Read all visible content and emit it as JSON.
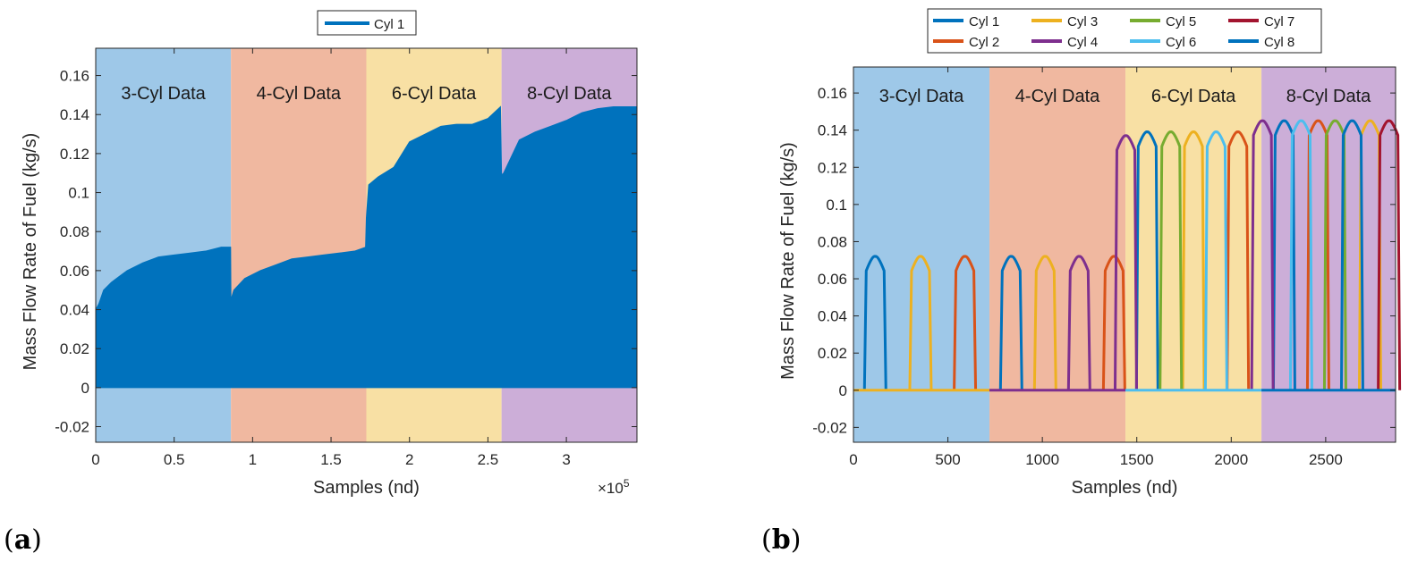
{
  "panels": [
    {
      "label_open": "(",
      "label_letter": "a",
      "label_close": ")"
    },
    {
      "label_open": "(",
      "label_letter": "b",
      "label_close": ")"
    }
  ],
  "chart_data": [
    {
      "type": "area",
      "xlabel": "Samples (nd)",
      "ylabel": "Mass Flow Rate of Fuel (kg/s)",
      "x_exponent_label": "×10",
      "x_exponent_power": "5",
      "xlim": [
        0,
        3.45
      ],
      "ylim": [
        -0.028,
        0.174
      ],
      "xticks": [
        0,
        0.5,
        1,
        1.5,
        2,
        2.5,
        3
      ],
      "xtick_labels": [
        "0",
        "0.5",
        "1",
        "1.5",
        "2",
        "2.5",
        "3"
      ],
      "yticks": [
        -0.02,
        0,
        0.02,
        0.04,
        0.06,
        0.08,
        0.1,
        0.12,
        0.14,
        0.16
      ],
      "ytick_labels": [
        "-0.02",
        "0",
        "0.02",
        "0.04",
        "0.06",
        "0.08",
        "0.1",
        "0.12",
        "0.14",
        "0.16"
      ],
      "grid": false,
      "legend_position": "top",
      "regions": [
        {
          "label": "3-Cyl Data",
          "x0": 0,
          "x1": 0.862,
          "color": "#9ec8e8"
        },
        {
          "label": "4-Cyl Data",
          "x0": 0.862,
          "x1": 1.725,
          "color": "#f0b8a0"
        },
        {
          "label": "6-Cyl Data",
          "x0": 1.725,
          "x1": 2.587,
          "color": "#f8e0a4"
        },
        {
          "label": "8-Cyl Data",
          "x0": 2.587,
          "x1": 3.45,
          "color": "#ccaed8"
        }
      ],
      "series": [
        {
          "name": "Cyl 1",
          "color": "#0072bd",
          "envelope_x": [
            0,
            0.02,
            0.05,
            0.1,
            0.15,
            0.2,
            0.3,
            0.4,
            0.5,
            0.6,
            0.7,
            0.8,
            0.86,
            0.862,
            0.88,
            0.95,
            1.05,
            1.15,
            1.25,
            1.35,
            1.45,
            1.55,
            1.65,
            1.72,
            1.725,
            1.74,
            1.8,
            1.9,
            2.0,
            2.1,
            2.2,
            2.3,
            2.4,
            2.5,
            2.58,
            2.587,
            2.6,
            2.7,
            2.8,
            2.9,
            3.0,
            3.1,
            3.2,
            3.3,
            3.45
          ],
          "envelope_y": [
            0.04,
            0.043,
            0.05,
            0.054,
            0.057,
            0.06,
            0.064,
            0.067,
            0.068,
            0.069,
            0.07,
            0.072,
            0.072,
            0.045,
            0.05,
            0.056,
            0.06,
            0.063,
            0.066,
            0.067,
            0.068,
            0.069,
            0.07,
            0.072,
            0.087,
            0.104,
            0.108,
            0.113,
            0.126,
            0.13,
            0.134,
            0.135,
            0.135,
            0.138,
            0.144,
            0.109,
            0.11,
            0.127,
            0.131,
            0.134,
            0.137,
            0.141,
            0.143,
            0.144,
            0.144
          ],
          "baseline": 0
        }
      ]
    },
    {
      "type": "line",
      "xlabel": "Samples (nd)",
      "ylabel": "Mass Flow Rate of Fuel (kg/s)",
      "xlim": [
        0,
        2870
      ],
      "ylim": [
        -0.028,
        0.174
      ],
      "xticks": [
        0,
        500,
        1000,
        1500,
        2000,
        2500
      ],
      "xtick_labels": [
        "0",
        "500",
        "1000",
        "1500",
        "2000",
        "2500"
      ],
      "yticks": [
        -0.02,
        0,
        0.02,
        0.04,
        0.06,
        0.08,
        0.1,
        0.12,
        0.14,
        0.16
      ],
      "ytick_labels": [
        "-0.02",
        "0",
        "0.02",
        "0.04",
        "0.06",
        "0.08",
        "0.1",
        "0.12",
        "0.14",
        "0.16"
      ],
      "grid": false,
      "legend_position": "top",
      "regions": [
        {
          "label": "3-Cyl Data",
          "x0": 0,
          "x1": 720,
          "color": "#9ec8e8"
        },
        {
          "label": "4-Cyl Data",
          "x0": 720,
          "x1": 1440,
          "color": "#f0b8a0"
        },
        {
          "label": "6-Cyl Data",
          "x0": 1440,
          "x1": 2160,
          "color": "#f8e0a4"
        },
        {
          "label": "8-Cyl Data",
          "x0": 2160,
          "x1": 2870,
          "color": "#ccaed8"
        }
      ],
      "series": [
        {
          "name": "Cyl 1",
          "color": "#0072bd",
          "pulses": [
            {
              "x": 115,
              "peak": 0.072
            },
            {
              "x": 835,
              "peak": 0.072
            },
            {
              "x": 1555,
              "peak": 0.139
            },
            {
              "x": 2280,
              "peak": 0.145
            }
          ]
        },
        {
          "name": "Cyl 2",
          "color": "#d95319",
          "pulses": [
            {
              "x": 590,
              "peak": 0.072
            },
            {
              "x": 1380,
              "peak": 0.072
            },
            {
              "x": 2035,
              "peak": 0.139
            },
            {
              "x": 2460,
              "peak": 0.145
            }
          ]
        },
        {
          "name": "Cyl 3",
          "color": "#edb120",
          "pulses": [
            {
              "x": 355,
              "peak": 0.072
            },
            {
              "x": 1015,
              "peak": 0.072
            },
            {
              "x": 1800,
              "peak": 0.139
            },
            {
              "x": 2735,
              "peak": 0.145
            }
          ]
        },
        {
          "name": "Cyl 4",
          "color": "#7e2f8e",
          "pulses": [
            {
              "x": 1195,
              "peak": 0.072
            },
            {
              "x": 1442,
              "peak": 0.137
            },
            {
              "x": 2165,
              "peak": 0.145
            }
          ]
        },
        {
          "name": "Cyl 5",
          "color": "#77ac30",
          "pulses": [
            {
              "x": 1680,
              "peak": 0.139
            },
            {
              "x": 2550,
              "peak": 0.145
            }
          ]
        },
        {
          "name": "Cyl 6",
          "color": "#4dbeee",
          "pulses": [
            {
              "x": 1920,
              "peak": 0.139
            },
            {
              "x": 2370,
              "peak": 0.145
            }
          ]
        },
        {
          "name": "Cyl 7",
          "color": "#a2142f",
          "pulses": [
            {
              "x": 2835,
              "peak": 0.145
            }
          ]
        },
        {
          "name": "Cyl 8",
          "color": "#0072bd",
          "pulses": [
            {
              "x": 2640,
              "peak": 0.145
            }
          ]
        }
      ]
    }
  ]
}
